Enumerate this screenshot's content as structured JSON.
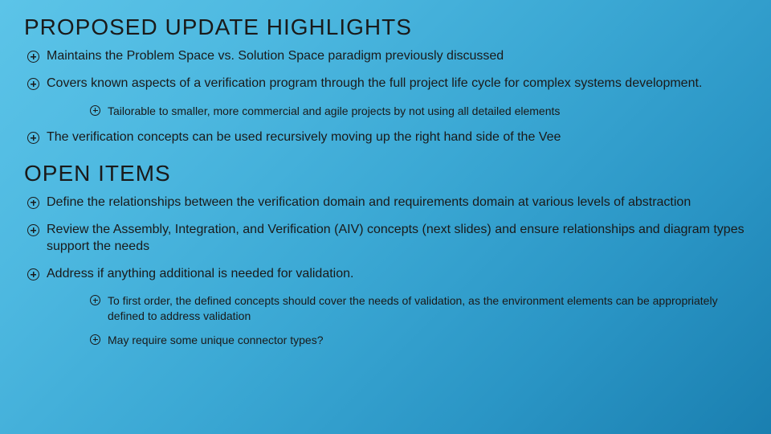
{
  "slide": {
    "background_gradient": [
      "#5cc4e8",
      "#4db8e0",
      "#3ba8d4",
      "#2a95c5",
      "#1a7fb0"
    ],
    "text_color": "#1a1a1a",
    "heading_fontsize": 28,
    "body_fontsize": 16,
    "sub_fontsize": 14
  },
  "section1": {
    "heading": "PROPOSED UPDATE HIGHLIGHTS",
    "b1": "Maintains the Problem Space vs. Solution Space paradigm previously discussed",
    "b2": "Covers known aspects of a verification program through the full project life cycle for complex systems development.",
    "b2_sub1": "Tailorable to smaller, more commercial and agile projects by not using all detailed elements",
    "b3": "The verification concepts can be used recursively moving up the right hand side of the Vee"
  },
  "section2": {
    "heading": "OPEN ITEMS",
    "b1": "Define the relationships between the verification domain and requirements domain at various levels of abstraction",
    "b2": "Review the Assembly, Integration, and Verification (AIV) concepts (next slides) and ensure relationships and diagram types support the needs",
    "b3": "Address if anything additional is needed for validation.",
    "b3_sub1": "To first order, the defined concepts should cover the needs of validation, as the environment elements can be appropriately defined to address validation",
    "b3_sub2": "May require some unique connector types?"
  }
}
